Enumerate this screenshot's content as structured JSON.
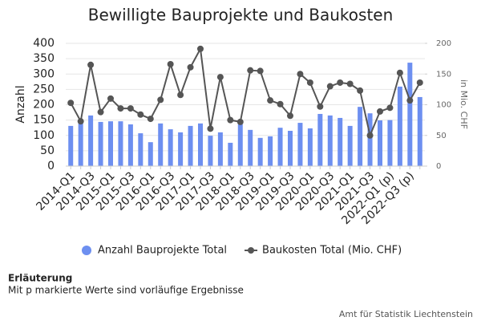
{
  "chart_data": {
    "type": "bar_line",
    "title": "Bewilligte Bauprojekte und Baukosten",
    "y_label": "Anzahl",
    "y2_label": "in Mio. CHF",
    "categories": [
      "2014-Q1",
      null,
      "2014-Q3",
      null,
      "2015-Q1",
      null,
      "2015-Q3",
      null,
      "2016-Q1",
      null,
      "2016-Q3",
      null,
      "2017-Q1",
      null,
      "2017-Q3",
      null,
      "2018-Q1",
      null,
      "2018-Q3",
      null,
      "2019-Q1",
      null,
      "2019-Q3",
      null,
      "2020-Q1",
      null,
      "2020-Q3",
      null,
      "2021-Q1",
      null,
      "2021-Q3",
      null,
      "2022-Q1 (p)",
      null,
      "2022-Q3 (p)",
      null
    ],
    "series": [
      {
        "name": "Anzahl Bauprojekte Total",
        "color": "#6d8ff0",
        "type": "bar",
        "axis": "y",
        "values": [
          131,
          149,
          165,
          144,
          146,
          146,
          136,
          107,
          78,
          139,
          120,
          110,
          131,
          139,
          99,
          110,
          76,
          136,
          118,
          92,
          97,
          125,
          115,
          141,
          123,
          170,
          165,
          157,
          131,
          193,
          172,
          149,
          150,
          259,
          337,
          225
        ]
      },
      {
        "name": "Baukosten Total (Mio. CHF)",
        "color": "#555555",
        "type": "line",
        "axis": "y2",
        "values": [
          103,
          73,
          165,
          88,
          110,
          94,
          94,
          84,
          77,
          108,
          166,
          116,
          161,
          191,
          61,
          145,
          75,
          72,
          156,
          155,
          107,
          101,
          82,
          150,
          136,
          97,
          130,
          136,
          134,
          123,
          50,
          89,
          95,
          152,
          107,
          136
        ]
      }
    ],
    "ylim": [
      0,
      400
    ],
    "yticks": [
      0,
      50,
      100,
      150,
      200,
      250,
      300,
      350,
      400
    ],
    "y2lim": [
      0,
      200
    ],
    "y2ticks": [
      0,
      50,
      100,
      150,
      200
    ],
    "legend": "bottom",
    "note_title": "Erläuterung",
    "note": "Mit p markierte Werte sind vorläufige Ergebnisse",
    "source": "Amt für Statistik Liechtenstein"
  }
}
